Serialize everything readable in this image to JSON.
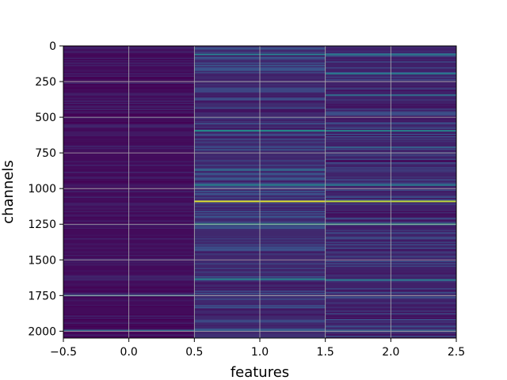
{
  "chart_data": {
    "type": "heatmap",
    "title": "",
    "xlabel": "features",
    "ylabel": "channels",
    "xlim": [
      -0.5,
      2.5
    ],
    "ylim": [
      2048,
      0
    ],
    "y_inverted": true,
    "xticks": [
      "−0.5",
      "0.0",
      "0.5",
      "1.0",
      "1.5",
      "2.0",
      "2.5"
    ],
    "xtick_values": [
      -0.5,
      0.0,
      0.5,
      1.0,
      1.5,
      2.0,
      2.5
    ],
    "yticks": [
      "0",
      "250",
      "500",
      "750",
      "1000",
      "1250",
      "1500",
      "1750",
      "2000"
    ],
    "ytick_values": [
      0,
      250,
      500,
      750,
      1000,
      1250,
      1500,
      1750,
      2000
    ],
    "grid": true,
    "colormap": "viridis",
    "columns": [
      0,
      1,
      2
    ],
    "rows": 2048,
    "bright_rows": [
      {
        "column": 1,
        "channel": 1090,
        "intensity": 0.95
      },
      {
        "column": 2,
        "channel": 1090,
        "intensity": 0.9
      },
      {
        "column": 1,
        "channel": 1250,
        "intensity": 0.55
      },
      {
        "column": 2,
        "channel": 1250,
        "intensity": 0.55
      },
      {
        "column": 1,
        "channel": 595,
        "intensity": 0.5
      },
      {
        "column": 2,
        "channel": 595,
        "intensity": 0.45
      },
      {
        "column": 1,
        "channel": 975,
        "intensity": 0.45
      },
      {
        "column": 2,
        "channel": 975,
        "intensity": 0.4
      },
      {
        "column": 1,
        "channel": 1635,
        "intensity": 0.45
      },
      {
        "column": 2,
        "channel": 1640,
        "intensity": 0.4
      },
      {
        "column": 1,
        "channel": 60,
        "intensity": 0.4
      },
      {
        "column": 2,
        "channel": 60,
        "intensity": 0.4
      },
      {
        "column": 2,
        "channel": 195,
        "intensity": 0.4
      },
      {
        "column": 2,
        "channel": 345,
        "intensity": 0.35
      },
      {
        "column": 1,
        "channel": 870,
        "intensity": 0.35
      },
      {
        "column": 2,
        "channel": 710,
        "intensity": 0.3
      },
      {
        "column": 0,
        "channel": 1750,
        "intensity": 0.35
      },
      {
        "column": 0,
        "channel": 1995,
        "intensity": 0.35
      },
      {
        "column": 1,
        "channel": 1995,
        "intensity": 0.3
      },
      {
        "column": 2,
        "channel": 1995,
        "intensity": 0.3
      }
    ],
    "background_levels": [
      0.03,
      0.12,
      0.1
    ]
  }
}
